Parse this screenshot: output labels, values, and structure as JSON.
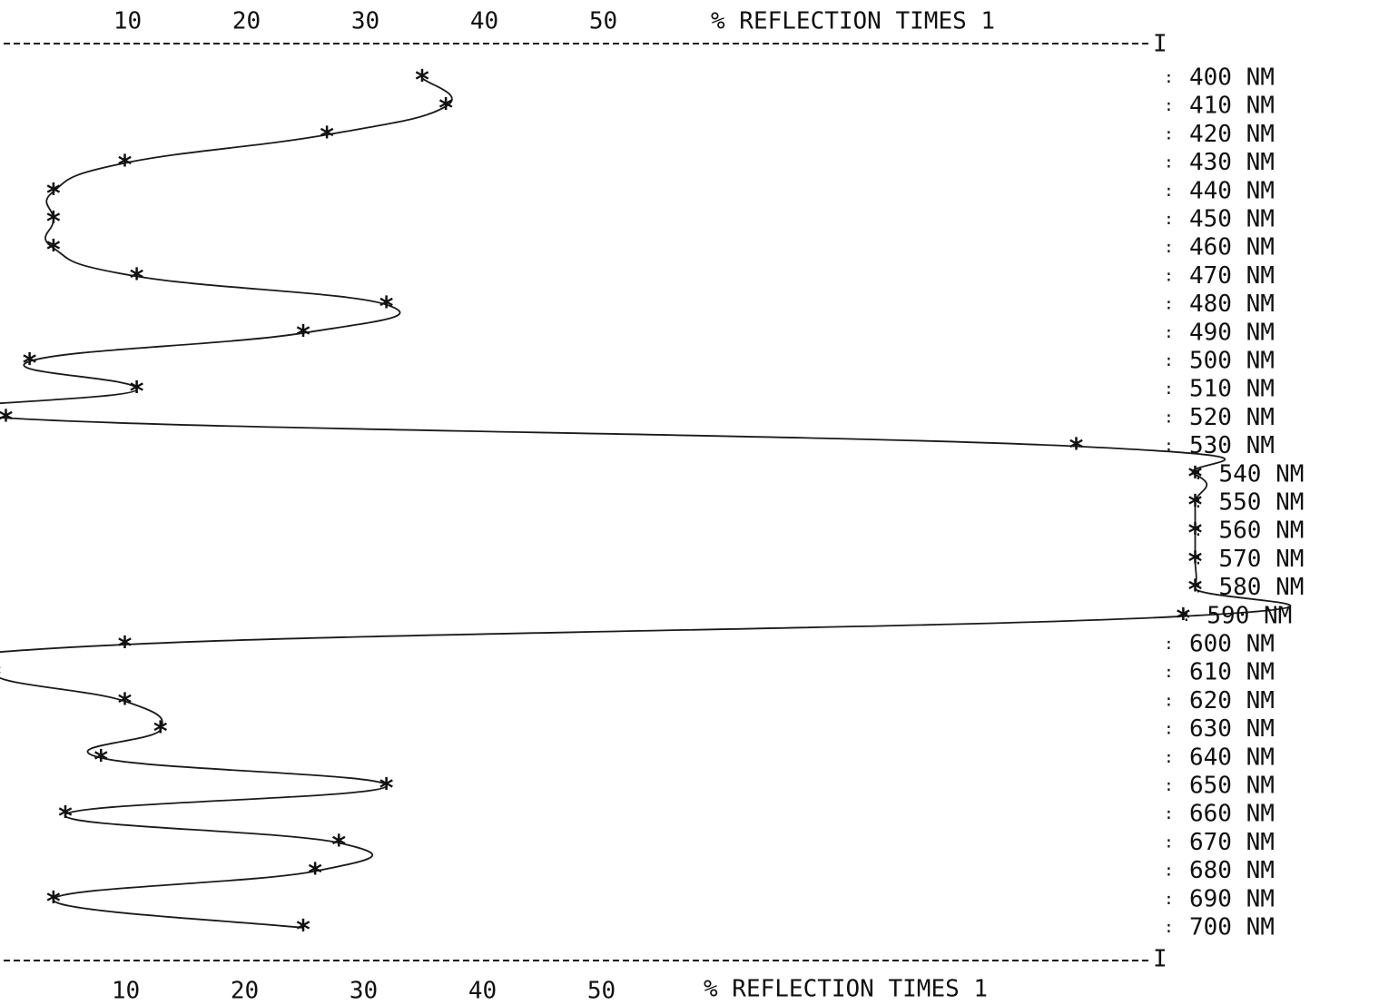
{
  "chart_data": {
    "type": "line",
    "title": "",
    "axis_label_top": "% REFLECTION TIMES 1",
    "axis_label_bottom": "% REFLECTION TIMES 1",
    "value_axis": {
      "ticks": [
        "10",
        "20",
        "30",
        "40",
        "50"
      ],
      "range": [
        0,
        98
      ]
    },
    "wavelength_unit": "NM",
    "border_end_marker": "I",
    "grid": false,
    "series": [
      {
        "points": [
          {
            "wavelength": 400,
            "reflection": 35
          },
          {
            "wavelength": 410,
            "reflection": 37
          },
          {
            "wavelength": 420,
            "reflection": 27
          },
          {
            "wavelength": 430,
            "reflection": 10
          },
          {
            "wavelength": 440,
            "reflection": 4
          },
          {
            "wavelength": 450,
            "reflection": 4
          },
          {
            "wavelength": 460,
            "reflection": 4
          },
          {
            "wavelength": 470,
            "reflection": 11
          },
          {
            "wavelength": 480,
            "reflection": 32
          },
          {
            "wavelength": 490,
            "reflection": 25
          },
          {
            "wavelength": 500,
            "reflection": 2
          },
          {
            "wavelength": 510,
            "reflection": 11
          },
          {
            "wavelength": 520,
            "reflection": 0
          },
          {
            "wavelength": 530,
            "reflection": 90
          },
          {
            "wavelength": 540,
            "reflection": 100
          },
          {
            "wavelength": 550,
            "reflection": 100
          },
          {
            "wavelength": 560,
            "reflection": 100
          },
          {
            "wavelength": 570,
            "reflection": 100
          },
          {
            "wavelength": 580,
            "reflection": 100
          },
          {
            "wavelength": 590,
            "reflection": 99
          },
          {
            "wavelength": 600,
            "reflection": 10
          },
          {
            "wavelength": 610,
            "reflection": -1
          },
          {
            "wavelength": 620,
            "reflection": 10
          },
          {
            "wavelength": 630,
            "reflection": 13
          },
          {
            "wavelength": 640,
            "reflection": 8
          },
          {
            "wavelength": 650,
            "reflection": 32
          },
          {
            "wavelength": 660,
            "reflection": 5
          },
          {
            "wavelength": 670,
            "reflection": 28
          },
          {
            "wavelength": 680,
            "reflection": 26
          },
          {
            "wavelength": 690,
            "reflection": 4
          },
          {
            "wavelength": 700,
            "reflection": 25
          }
        ]
      }
    ]
  }
}
